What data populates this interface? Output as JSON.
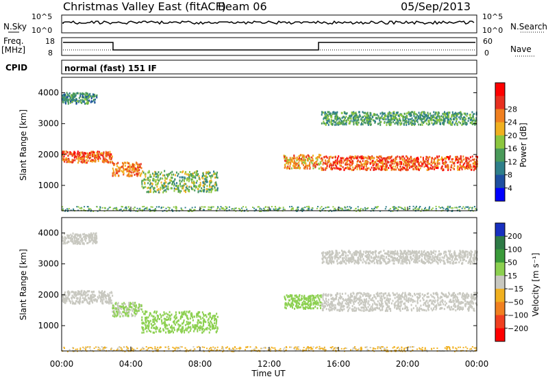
{
  "header": {
    "title": "Christmas Valley East (fitACF)",
    "beam": "Beam 06",
    "date": "05/Sep/2013"
  },
  "left_labels": {
    "nsky": "N.Sky",
    "freq": "Freq.",
    "freq_unit": "[MHz]",
    "cpid": "CPID"
  },
  "right_labels": {
    "nsearch": "N.Search",
    "nave": "Nave"
  },
  "cpid_value": "normal (fast) 151 IF",
  "noise_axis": {
    "left_ticks": [
      "10^5",
      "10^0"
    ],
    "right_ticks": [
      "10^5",
      "10^0"
    ]
  },
  "freq_axis": {
    "left_ticks": [
      "18",
      "8"
    ],
    "right_ticks": [
      "60",
      "0"
    ]
  },
  "chart_data": [
    {
      "type": "heatmap",
      "title": "",
      "xlabel": "Time UT",
      "ylabel": "Slant Range [km]",
      "x_ticks": [
        "00:00",
        "04:00",
        "08:00",
        "12:00",
        "16:00",
        "20:00",
        "00:00"
      ],
      "y_ticks": [
        "1000",
        "2000",
        "3000",
        "4000"
      ],
      "x_range_hours": [
        0,
        24
      ],
      "y_range_km": [
        180,
        4500
      ],
      "colorbar": {
        "label": "Power [dB]",
        "ticks": [
          "4",
          "8",
          "12",
          "16",
          "20",
          "24",
          "28"
        ],
        "colors": [
          "#0000ff",
          "#1e4fa0",
          "#2f7f8a",
          "#4a9a5a",
          "#8cc63f",
          "#f0b020",
          "#f08020",
          "#e83020",
          "#ff0000"
        ]
      },
      "bands": [
        {
          "t0": 0,
          "t1": 2.9,
          "r_center": 1950,
          "r_width": 260,
          "level": 26
        },
        {
          "t0": 2.9,
          "t1": 4.6,
          "r_center": 1550,
          "r_width": 320,
          "level": 24
        },
        {
          "t0": 4.6,
          "t1": 9.0,
          "r_center": 1150,
          "r_width": 500,
          "level": 14
        },
        {
          "t0": 12.8,
          "t1": 15.0,
          "r_center": 1800,
          "r_width": 320,
          "level": 22
        },
        {
          "t0": 15.0,
          "t1": 24,
          "r_center": 1750,
          "r_width": 320,
          "level": 26
        },
        {
          "t0": 0,
          "t1": 2.0,
          "r_center": 3850,
          "r_width": 250,
          "level": 10
        },
        {
          "t0": 15.0,
          "t1": 24,
          "r_center": 3200,
          "r_width": 300,
          "level": 12
        }
      ]
    },
    {
      "type": "heatmap",
      "title": "",
      "xlabel": "Time UT",
      "ylabel": "Slant Range [km]",
      "x_ticks": [
        "00:00",
        "04:00",
        "08:00",
        "12:00",
        "16:00",
        "20:00",
        "00:00"
      ],
      "y_ticks": [
        "1000",
        "2000",
        "3000",
        "4000"
      ],
      "x_range_hours": [
        0,
        24
      ],
      "y_range_km": [
        180,
        4500
      ],
      "colorbar": {
        "label": "Velocity [m s⁻¹]",
        "ticks": [
          "200",
          "100",
          "50",
          "15",
          "−15",
          "−50",
          "−100",
          "−200"
        ],
        "colors": [
          "#1830c0",
          "#2e7a46",
          "#3a9a3a",
          "#8cd050",
          "#c8c8c0",
          "#f0b020",
          "#f08020",
          "#f04020",
          "#ff0000"
        ]
      },
      "bands": [
        {
          "t0": 0,
          "t1": 2.9,
          "r_center": 1950,
          "r_width": 300,
          "level": 0
        },
        {
          "t0": 2.9,
          "t1": 4.6,
          "r_center": 1550,
          "r_width": 320,
          "level": 20
        },
        {
          "t0": 4.6,
          "t1": 9.0,
          "r_center": 1150,
          "r_width": 500,
          "level": 30
        },
        {
          "t0": 12.8,
          "t1": 15.0,
          "r_center": 1800,
          "r_width": 320,
          "level": 40
        },
        {
          "t0": 15.0,
          "t1": 24,
          "r_center": 1800,
          "r_width": 420,
          "level": 0
        },
        {
          "t0": 0,
          "t1": 2.0,
          "r_center": 3850,
          "r_width": 250,
          "level": 0
        },
        {
          "t0": 15.0,
          "t1": 24,
          "r_center": 3250,
          "r_width": 300,
          "level": 0
        }
      ]
    }
  ]
}
